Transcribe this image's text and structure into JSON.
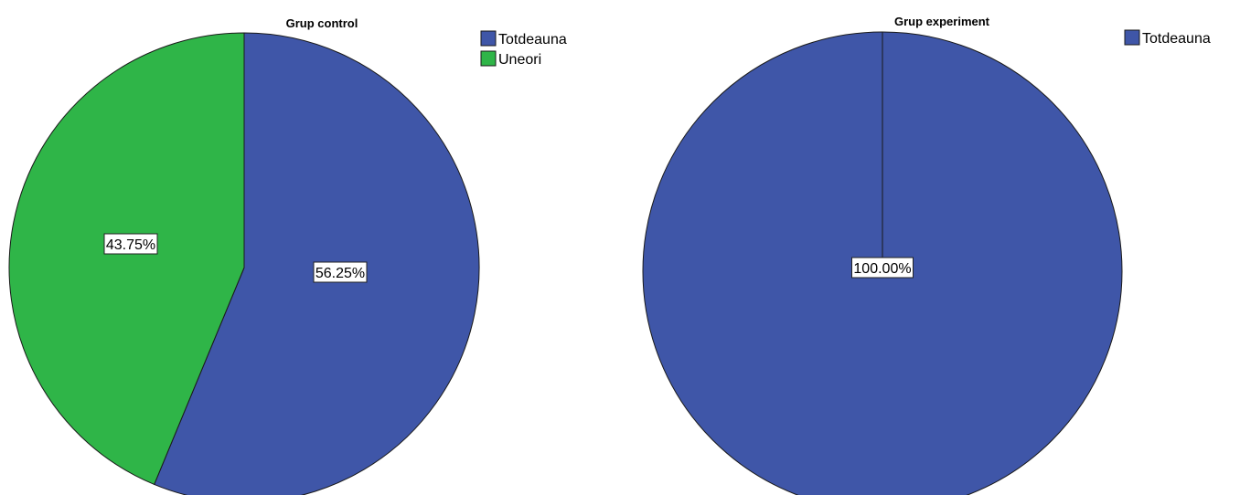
{
  "chart_data": [
    {
      "type": "pie",
      "title": "Grup control",
      "slices": [
        {
          "label": "Totdeauna",
          "value": 56.25,
          "display": "56.25%",
          "color": "#3f56a8"
        },
        {
          "label": "Uneori",
          "value": 43.75,
          "display": "43.75%",
          "color": "#2fb548"
        }
      ],
      "legend": [
        "Totdeauna",
        "Uneori"
      ],
      "legend_position": "top-right"
    },
    {
      "type": "pie",
      "title": "Grup experiment",
      "slices": [
        {
          "label": "Totdeauna",
          "value": 100.0,
          "display": "100.00%",
          "color": "#3f56a8"
        }
      ],
      "legend": [
        "Totdeauna"
      ],
      "legend_position": "top-right"
    }
  ]
}
